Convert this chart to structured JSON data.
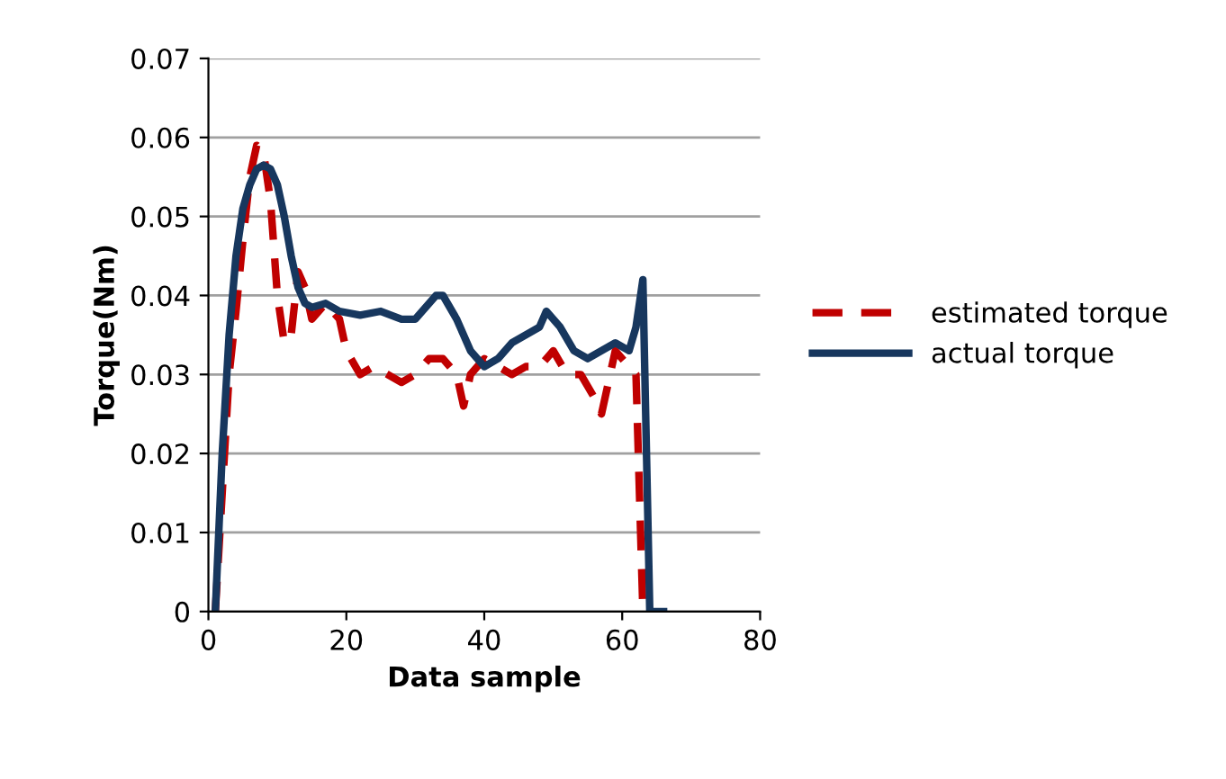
{
  "chart_data": {
    "type": "line",
    "xlabel": "Data sample",
    "ylabel": "Torque(Nm)",
    "xlim": [
      0,
      80
    ],
    "xticks": [
      0,
      20,
      40,
      60,
      80
    ],
    "ylim": [
      0,
      0.07
    ],
    "yticks": [
      0,
      0.01,
      0.02,
      0.03,
      0.04,
      0.05,
      0.06,
      0.07
    ],
    "grid": "y",
    "legend": "right",
    "marker": "none",
    "series": [
      {
        "name": "estimated torque",
        "color": "#c00000",
        "line_style": "dashed",
        "x": [
          1,
          2,
          3,
          4,
          5,
          6,
          7,
          8,
          9,
          10,
          11,
          12,
          13,
          14,
          15,
          17,
          19,
          20,
          22,
          24,
          26,
          28,
          30,
          32,
          34,
          36,
          37,
          38,
          40,
          42,
          44,
          46,
          48,
          50,
          52,
          54,
          56,
          57,
          58,
          59,
          61,
          62,
          63
        ],
        "values": [
          0,
          0.015,
          0.03,
          0.038,
          0.047,
          0.055,
          0.059,
          0.058,
          0.052,
          0.04,
          0.034,
          0.035,
          0.043,
          0.041,
          0.037,
          0.039,
          0.037,
          0.033,
          0.03,
          0.031,
          0.03,
          0.029,
          0.03,
          0.032,
          0.032,
          0.03,
          0.026,
          0.03,
          0.032,
          0.031,
          0.03,
          0.031,
          0.031,
          0.033,
          0.03,
          0.03,
          0.027,
          0.025,
          0.029,
          0.033,
          0.031,
          0.03,
          0
        ]
      },
      {
        "name": "actual torque",
        "color": "#17375e",
        "line_style": "solid",
        "x": [
          1,
          2,
          3,
          4,
          5,
          6,
          7,
          8,
          9,
          10,
          11,
          12,
          13,
          14,
          15,
          17,
          19,
          22,
          25,
          28,
          30,
          33,
          34,
          36,
          38,
          40,
          42,
          44,
          46,
          48,
          49,
          51,
          53,
          55,
          57,
          59,
          61,
          62,
          63,
          64,
          66
        ],
        "values": [
          0,
          0.02,
          0.035,
          0.045,
          0.051,
          0.054,
          0.056,
          0.0565,
          0.056,
          0.054,
          0.05,
          0.045,
          0.041,
          0.039,
          0.0385,
          0.039,
          0.038,
          0.0375,
          0.038,
          0.037,
          0.037,
          0.04,
          0.04,
          0.037,
          0.033,
          0.031,
          0.032,
          0.034,
          0.035,
          0.036,
          0.038,
          0.036,
          0.033,
          0.032,
          0.033,
          0.034,
          0.033,
          0.036,
          0.042,
          0,
          0
        ]
      }
    ]
  }
}
